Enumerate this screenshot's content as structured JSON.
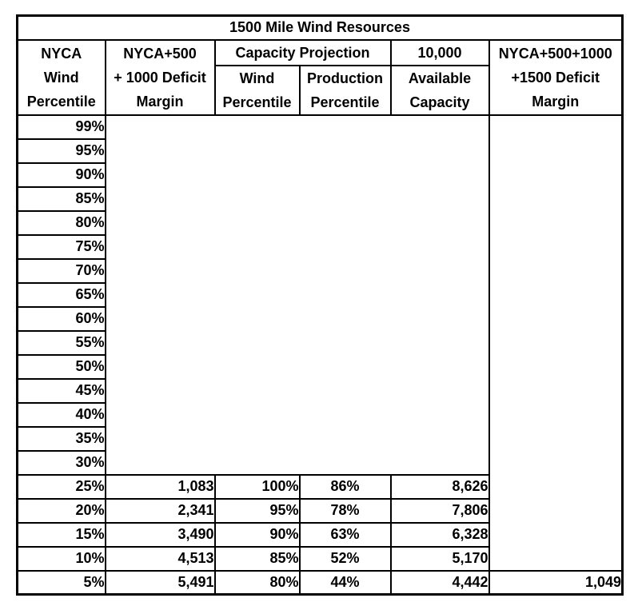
{
  "title": "1500 Mile Wind Resources",
  "colors": {
    "text": "#000000",
    "border": "#000000",
    "background": "#ffffff"
  },
  "header": {
    "nyca_wind_percentile": [
      "NYCA",
      "Wind",
      "Percentile"
    ],
    "nyca500_deficit": [
      "NYCA+500",
      "+ 1000 Deficit",
      "Margin"
    ],
    "capacity_projection": "Capacity Projection",
    "wind_percentile": [
      "Wind",
      "Percentile"
    ],
    "production_percentile": [
      "Production",
      "Percentile"
    ],
    "available_capacity_top": "10,000",
    "available_capacity": [
      "Available",
      "Capacity"
    ],
    "nyca500_1000_1500_deficit": [
      "NYCA+500+1000",
      "+1500 Deficit",
      "Margin"
    ]
  },
  "chart_data": {
    "type": "table",
    "title": "1500 Mile Wind Resources",
    "columns": [
      "NYCA Wind Percentile",
      "NYCA+500 + 1000 Deficit Margin",
      "Capacity Projection Wind Percentile",
      "Capacity Projection Production Percentile",
      "10,000 Available Capacity",
      "NYCA+500+1000 +1500 Deficit Margin"
    ],
    "rows": [
      [
        "99%",
        "",
        "",
        "",
        "",
        ""
      ],
      [
        "95%",
        "",
        "",
        "",
        "",
        ""
      ],
      [
        "90%",
        "",
        "",
        "",
        "",
        ""
      ],
      [
        "85%",
        "",
        "",
        "",
        "",
        ""
      ],
      [
        "80%",
        "",
        "",
        "",
        "",
        ""
      ],
      [
        "75%",
        "",
        "",
        "",
        "",
        ""
      ],
      [
        "70%",
        "",
        "",
        "",
        "",
        ""
      ],
      [
        "65%",
        "",
        "",
        "",
        "",
        ""
      ],
      [
        "60%",
        "",
        "",
        "",
        "",
        ""
      ],
      [
        "55%",
        "",
        "",
        "",
        "",
        ""
      ],
      [
        "50%",
        "",
        "",
        "",
        "",
        ""
      ],
      [
        "45%",
        "",
        "",
        "",
        "",
        ""
      ],
      [
        "40%",
        "",
        "",
        "",
        "",
        ""
      ],
      [
        "35%",
        "",
        "",
        "",
        "",
        ""
      ],
      [
        "30%",
        "",
        "",
        "",
        "",
        ""
      ],
      [
        "25%",
        "1,083",
        "100%",
        "86%",
        "8,626",
        ""
      ],
      [
        "20%",
        "2,341",
        "95%",
        "78%",
        "7,806",
        ""
      ],
      [
        "15%",
        "3,490",
        "90%",
        "63%",
        "6,328",
        ""
      ],
      [
        "10%",
        "4,513",
        "85%",
        "52%",
        "5,170",
        ""
      ],
      [
        "5%",
        "5,491",
        "80%",
        "44%",
        "4,442",
        "1,049"
      ]
    ]
  }
}
